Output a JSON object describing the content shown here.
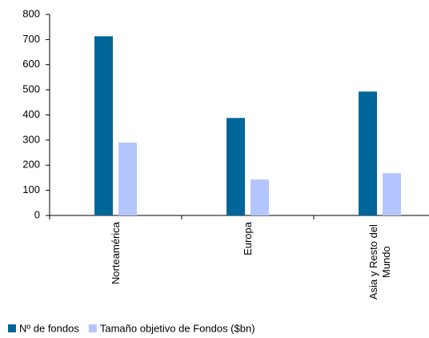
{
  "chart_data": {
    "type": "bar",
    "categories": [
      "Norteamérica",
      "Europa",
      "Asia y Resto del Mundo"
    ],
    "series": [
      {
        "name": "Nº de fondos",
        "color": "#006699",
        "values": [
          713,
          388,
          493
        ]
      },
      {
        "name": "Tamaño objetivo de Fondos ($bn)",
        "color": "#b3c6ff",
        "values": [
          290,
          143,
          168
        ]
      }
    ],
    "ylim": [
      0,
      800
    ],
    "yticks": [
      0,
      100,
      200,
      300,
      400,
      500,
      600,
      700,
      800
    ],
    "grid": false,
    "legend": "bottom"
  }
}
